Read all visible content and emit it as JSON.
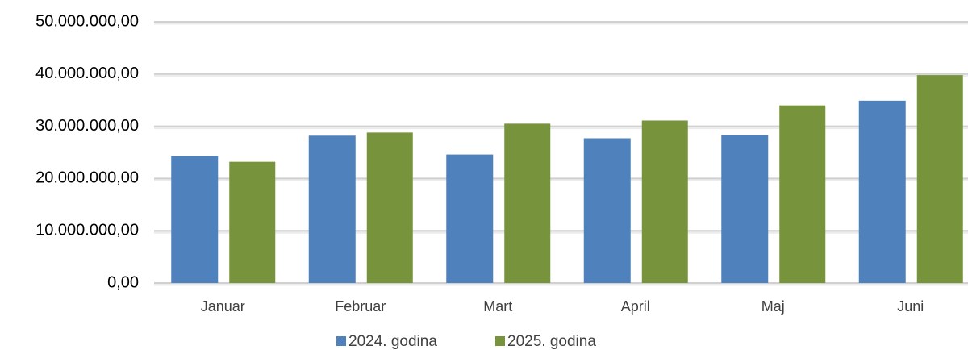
{
  "chart_data": {
    "type": "bar",
    "categories": [
      "Januar",
      "Februar",
      "Mart",
      "April",
      "Maj",
      "Juni"
    ],
    "series": [
      {
        "name": "2024. godina",
        "color": "#4f81bd",
        "values": [
          24300000,
          28200000,
          24600000,
          27700000,
          28300000,
          34900000
        ]
      },
      {
        "name": "2025. godina",
        "color": "#77933c",
        "values": [
          23200000,
          28800000,
          30500000,
          31100000,
          34000000,
          39800000
        ]
      }
    ],
    "ylim": [
      0,
      50000000
    ],
    "yticks": [
      {
        "value": 0,
        "label": "0,00"
      },
      {
        "value": 10000000,
        "label": "10.000.000,00"
      },
      {
        "value": 20000000,
        "label": "20.000.000,00"
      },
      {
        "value": 30000000,
        "label": "30.000.000,00"
      },
      {
        "value": 40000000,
        "label": "40.000.000,00"
      },
      {
        "value": 50000000,
        "label": "50.000.000,00"
      }
    ],
    "grid": true,
    "legend": "bottom"
  }
}
